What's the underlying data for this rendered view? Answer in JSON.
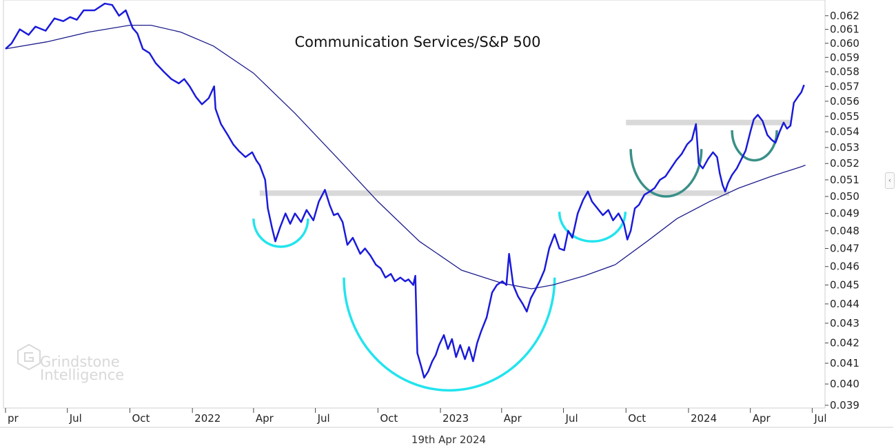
{
  "chart_data": {
    "type": "line",
    "title": "Communication Services/S&P 500",
    "date_label": "19th Apr 2024",
    "watermark": [
      "Grindstone",
      "Intelligence"
    ],
    "y_axis": {
      "position": "right",
      "range": [
        0.039,
        0.0625
      ],
      "scale": "log",
      "ticks": [
        "0.062",
        "0.061",
        "0.060",
        "0.059",
        "0.058",
        "0.057",
        "0.056",
        "0.055",
        "0.054",
        "0.053",
        "0.052",
        "0.051",
        "0.050",
        "0.049",
        "0.048",
        "0.047",
        "0.046",
        "0.045",
        "0.044",
        "0.043",
        "0.042",
        "0.041",
        "0.040",
        "0.039"
      ]
    },
    "x_axis": {
      "range": [
        "2021-04-01",
        "2024-07-31"
      ],
      "ticks": [
        {
          "label": "pr",
          "date": "2021-04-01"
        },
        {
          "label": "Jul",
          "date": "2021-07-01"
        },
        {
          "label": "Oct",
          "date": "2021-10-01"
        },
        {
          "label": "2022",
          "date": "2022-01-01"
        },
        {
          "label": "Apr",
          "date": "2022-04-01"
        },
        {
          "label": "Jul",
          "date": "2022-07-01"
        },
        {
          "label": "Oct",
          "date": "2022-10-01"
        },
        {
          "label": "2023",
          "date": "2023-01-01"
        },
        {
          "label": "Apr",
          "date": "2023-04-01"
        },
        {
          "label": "Jul",
          "date": "2023-07-01"
        },
        {
          "label": "Oct",
          "date": "2023-10-01"
        },
        {
          "label": "2024",
          "date": "2024-01-01"
        },
        {
          "label": "Apr",
          "date": "2024-04-01"
        },
        {
          "label": "Jul",
          "date": "2024-07-01"
        }
      ]
    },
    "series": [
      {
        "role": "ratio",
        "color": "#1a1adb",
        "points": [
          [
            "2021-04-01",
            0.0596
          ],
          [
            "2021-04-10",
            0.06
          ],
          [
            "2021-04-22",
            0.061
          ],
          [
            "2021-05-05",
            0.0606
          ],
          [
            "2021-05-15",
            0.0612
          ],
          [
            "2021-05-30",
            0.0609
          ],
          [
            "2021-06-12",
            0.0618
          ],
          [
            "2021-06-25",
            0.0616
          ],
          [
            "2021-07-05",
            0.0619
          ],
          [
            "2021-07-15",
            0.0617
          ],
          [
            "2021-07-25",
            0.0624
          ],
          [
            "2021-08-10",
            0.0624
          ],
          [
            "2021-08-25",
            0.0629
          ],
          [
            "2021-09-05",
            0.0628
          ],
          [
            "2021-09-15",
            0.062
          ],
          [
            "2021-09-25",
            0.0624
          ],
          [
            "2021-10-05",
            0.0611
          ],
          [
            "2021-10-12",
            0.0607
          ],
          [
            "2021-10-20",
            0.0596
          ],
          [
            "2021-10-30",
            0.0593
          ],
          [
            "2021-11-08",
            0.0586
          ],
          [
            "2021-11-20",
            0.058
          ],
          [
            "2021-12-01",
            0.0575
          ],
          [
            "2021-12-12",
            0.0572
          ],
          [
            "2021-12-20",
            0.0575
          ],
          [
            "2021-12-28",
            0.057
          ],
          [
            "2022-01-06",
            0.0563
          ],
          [
            "2022-01-15",
            0.0558
          ],
          [
            "2022-01-25",
            0.0562
          ],
          [
            "2022-02-02",
            0.057
          ],
          [
            "2022-02-04",
            0.0555
          ],
          [
            "2022-02-12",
            0.0545
          ],
          [
            "2022-02-22",
            0.0538
          ],
          [
            "2022-03-02",
            0.0532
          ],
          [
            "2022-03-10",
            0.0528
          ],
          [
            "2022-03-20",
            0.0524
          ],
          [
            "2022-03-30",
            0.0527
          ],
          [
            "2022-04-05",
            0.0522
          ],
          [
            "2022-04-10",
            0.0519
          ],
          [
            "2022-04-18",
            0.051
          ],
          [
            "2022-04-22",
            0.0493
          ],
          [
            "2022-04-28",
            0.0482
          ],
          [
            "2022-05-03",
            0.0474
          ],
          [
            "2022-05-10",
            0.0482
          ],
          [
            "2022-05-18",
            0.049
          ],
          [
            "2022-05-25",
            0.0484
          ],
          [
            "2022-06-01",
            0.049
          ],
          [
            "2022-06-10",
            0.0485
          ],
          [
            "2022-06-18",
            0.0492
          ],
          [
            "2022-06-28",
            0.0486
          ],
          [
            "2022-07-06",
            0.0497
          ],
          [
            "2022-07-15",
            0.0504
          ],
          [
            "2022-07-22",
            0.0495
          ],
          [
            "2022-07-28",
            0.0489
          ],
          [
            "2022-08-03",
            0.049
          ],
          [
            "2022-08-10",
            0.0485
          ],
          [
            "2022-08-17",
            0.0472
          ],
          [
            "2022-08-25",
            0.0476
          ],
          [
            "2022-09-05",
            0.0467
          ],
          [
            "2022-09-12",
            0.047
          ],
          [
            "2022-09-20",
            0.0466
          ],
          [
            "2022-09-28",
            0.0461
          ],
          [
            "2022-10-05",
            0.0459
          ],
          [
            "2022-10-12",
            0.0454
          ],
          [
            "2022-10-20",
            0.0456
          ],
          [
            "2022-10-26",
            0.0452
          ],
          [
            "2022-11-03",
            0.0454
          ],
          [
            "2022-11-10",
            0.0452
          ],
          [
            "2022-11-15",
            0.0453
          ],
          [
            "2022-11-22",
            0.045
          ],
          [
            "2022-11-25",
            0.0455
          ],
          [
            "2022-11-28",
            0.0415
          ],
          [
            "2022-12-04",
            0.0408
          ],
          [
            "2022-12-08",
            0.0403
          ],
          [
            "2022-12-14",
            0.0406
          ],
          [
            "2022-12-20",
            0.0411
          ],
          [
            "2022-12-25",
            0.0414
          ],
          [
            "2022-12-30",
            0.0419
          ],
          [
            "2023-01-06",
            0.0424
          ],
          [
            "2023-01-12",
            0.0417
          ],
          [
            "2023-01-18",
            0.0422
          ],
          [
            "2023-01-24",
            0.0413
          ],
          [
            "2023-01-30",
            0.0419
          ],
          [
            "2023-02-06",
            0.0412
          ],
          [
            "2023-02-12",
            0.0418
          ],
          [
            "2023-02-18",
            0.0411
          ],
          [
            "2023-02-24",
            0.042
          ],
          [
            "2023-03-02",
            0.0426
          ],
          [
            "2023-03-10",
            0.0433
          ],
          [
            "2023-03-18",
            0.0446
          ],
          [
            "2023-03-25",
            0.045
          ],
          [
            "2023-04-02",
            0.0452
          ],
          [
            "2023-04-08",
            0.045
          ],
          [
            "2023-04-12",
            0.0467
          ],
          [
            "2023-04-18",
            0.045
          ],
          [
            "2023-04-25",
            0.0444
          ],
          [
            "2023-05-02",
            0.044
          ],
          [
            "2023-05-08",
            0.0436
          ],
          [
            "2023-05-14",
            0.0443
          ],
          [
            "2023-05-20",
            0.0447
          ],
          [
            "2023-05-27",
            0.0452
          ],
          [
            "2023-06-03",
            0.0458
          ],
          [
            "2023-06-10",
            0.047
          ],
          [
            "2023-06-18",
            0.0478
          ],
          [
            "2023-06-25",
            0.047
          ],
          [
            "2023-07-02",
            0.0469
          ],
          [
            "2023-07-08",
            0.048
          ],
          [
            "2023-07-14",
            0.0476
          ],
          [
            "2023-07-22",
            0.049
          ],
          [
            "2023-07-30",
            0.0498
          ],
          [
            "2023-08-06",
            0.0503
          ],
          [
            "2023-08-12",
            0.0497
          ],
          [
            "2023-08-20",
            0.0493
          ],
          [
            "2023-08-28",
            0.0489
          ],
          [
            "2023-09-05",
            0.0492
          ],
          [
            "2023-09-12",
            0.0486
          ],
          [
            "2023-09-20",
            0.049
          ],
          [
            "2023-09-28",
            0.0484
          ],
          [
            "2023-10-03",
            0.0475
          ],
          [
            "2023-10-08",
            0.048
          ],
          [
            "2023-10-14",
            0.0493
          ],
          [
            "2023-10-20",
            0.0495
          ],
          [
            "2023-10-28",
            0.0501
          ],
          [
            "2023-11-05",
            0.0503
          ],
          [
            "2023-11-12",
            0.0505
          ],
          [
            "2023-11-20",
            0.051
          ],
          [
            "2023-11-28",
            0.0512
          ],
          [
            "2023-12-06",
            0.0517
          ],
          [
            "2023-12-14",
            0.0522
          ],
          [
            "2023-12-22",
            0.0526
          ],
          [
            "2023-12-30",
            0.0532
          ],
          [
            "2024-01-06",
            0.0535
          ],
          [
            "2024-01-12",
            0.0545
          ],
          [
            "2024-01-16",
            0.052
          ],
          [
            "2024-01-22",
            0.0517
          ],
          [
            "2024-01-30",
            0.0523
          ],
          [
            "2024-02-06",
            0.0527
          ],
          [
            "2024-02-12",
            0.0524
          ],
          [
            "2024-02-16",
            0.0514
          ],
          [
            "2024-02-20",
            0.0507
          ],
          [
            "2024-02-24",
            0.0503
          ],
          [
            "2024-02-28",
            0.0508
          ],
          [
            "2024-03-05",
            0.0513
          ],
          [
            "2024-03-12",
            0.0517
          ],
          [
            "2024-03-18",
            0.0522
          ],
          [
            "2024-03-25",
            0.0528
          ],
          [
            "2024-04-01",
            0.054
          ],
          [
            "2024-04-06",
            0.0548
          ],
          [
            "2024-04-12",
            0.0551
          ],
          [
            "2024-04-19",
            0.0547
          ],
          [
            "2024-04-26",
            0.0538
          ],
          [
            "2024-05-02",
            0.0535
          ],
          [
            "2024-05-08",
            0.0533
          ],
          [
            "2024-05-14",
            0.054
          ],
          [
            "2024-05-20",
            0.0546
          ],
          [
            "2024-05-25",
            0.0542
          ],
          [
            "2024-05-30",
            0.0544
          ],
          [
            "2024-06-04",
            0.0559
          ],
          [
            "2024-06-10",
            0.0563
          ],
          [
            "2024-06-15",
            0.0566
          ],
          [
            "2024-06-19",
            0.0571
          ]
        ]
      },
      {
        "role": "moving-average",
        "color": "#1c1c8c",
        "points": [
          [
            "2021-04-01",
            0.0596
          ],
          [
            "2021-06-01",
            0.0601
          ],
          [
            "2021-08-01",
            0.0608
          ],
          [
            "2021-10-01",
            0.0613
          ],
          [
            "2021-11-01",
            0.0613
          ],
          [
            "2021-12-15",
            0.0608
          ],
          [
            "2022-02-01",
            0.0598
          ],
          [
            "2022-04-01",
            0.0579
          ],
          [
            "2022-06-01",
            0.0552
          ],
          [
            "2022-08-01",
            0.0524
          ],
          [
            "2022-10-01",
            0.0497
          ],
          [
            "2022-12-01",
            0.0474
          ],
          [
            "2023-02-01",
            0.0458
          ],
          [
            "2023-04-01",
            0.0451
          ],
          [
            "2023-05-15",
            0.0448
          ],
          [
            "2023-06-15",
            0.045
          ],
          [
            "2023-08-01",
            0.0455
          ],
          [
            "2023-09-15",
            0.0461
          ],
          [
            "2023-11-01",
            0.0474
          ],
          [
            "2023-12-15",
            0.0487
          ],
          [
            "2024-02-01",
            0.0497
          ],
          [
            "2024-03-15",
            0.0505
          ],
          [
            "2024-05-01",
            0.0512
          ],
          [
            "2024-06-15",
            0.0518
          ],
          [
            "2024-06-21",
            0.0519
          ]
        ]
      }
    ],
    "annotations": {
      "resistance_lines": [
        {
          "from": "2022-04-10",
          "to": "2024-03-01",
          "value": 0.0502,
          "color": "#d9d9d9"
        },
        {
          "from": "2023-10-01",
          "to": "2024-05-31",
          "value": 0.0546,
          "color": "#d9d9d9"
        }
      ],
      "arcs": [
        {
          "from": "2022-04-01",
          "to": "2022-06-20",
          "top": 0.0487,
          "bottom": 0.0471,
          "color": "#22e4ee"
        },
        {
          "from": "2022-08-12",
          "to": "2023-06-18",
          "top": 0.0454,
          "bottom": 0.0397,
          "color": "#22e4ee"
        },
        {
          "from": "2023-06-25",
          "to": "2023-09-30",
          "top": 0.0491,
          "bottom": 0.0474,
          "color": "#22e4ee"
        },
        {
          "from": "2023-10-08",
          "to": "2024-01-20",
          "top": 0.0529,
          "bottom": 0.05,
          "color": "#3a9088"
        },
        {
          "from": "2024-03-05",
          "to": "2024-05-10",
          "top": 0.0541,
          "bottom": 0.0522,
          "color": "#3a9088"
        }
      ]
    }
  }
}
